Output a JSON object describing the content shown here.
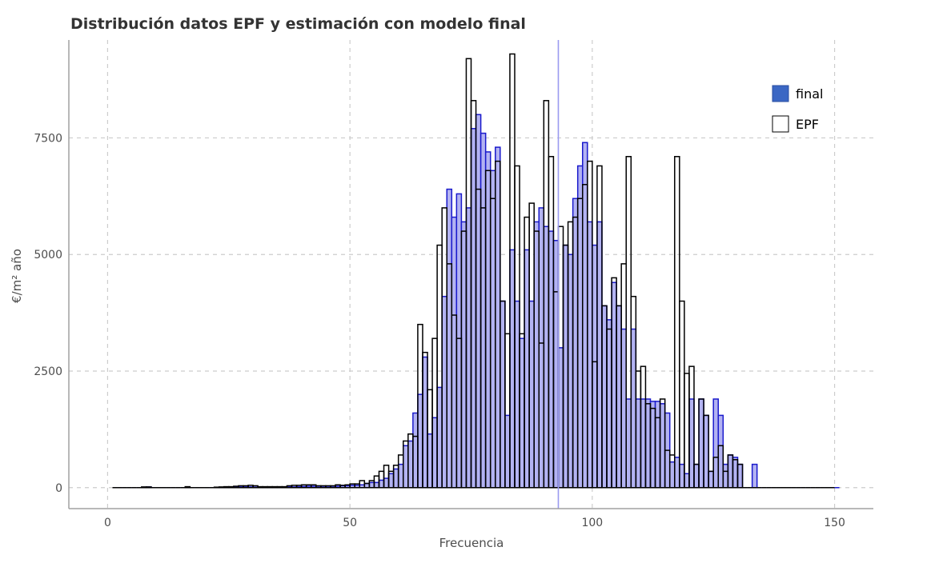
{
  "chart_data": {
    "type": "bar",
    "title": "Distribución datos EPF y estimación con modelo final",
    "xlabel": "Frecuencia",
    "ylabel": "€/m² año",
    "xlim": [
      -8,
      158
    ],
    "ylim": [
      -450,
      9600
    ],
    "xticks": [
      0,
      50,
      100,
      150
    ],
    "yticks": [
      0,
      2500,
      5000,
      7500
    ],
    "grid": true,
    "legend_position": "top-right",
    "bin_width": 1,
    "bin_start": 1,
    "vline": 93,
    "series": [
      {
        "name": "final",
        "fill": "#b3b3f2",
        "stroke": "#1a1acc",
        "values": [
          0,
          0,
          0,
          0,
          0,
          0,
          10,
          15,
          0,
          0,
          0,
          0,
          0,
          0,
          0,
          5,
          0,
          0,
          0,
          0,
          0,
          5,
          5,
          10,
          10,
          10,
          15,
          15,
          15,
          10,
          10,
          10,
          10,
          10,
          5,
          10,
          15,
          15,
          20,
          25,
          30,
          30,
          30,
          30,
          30,
          30,
          30,
          40,
          40,
          50,
          50,
          60,
          90,
          110,
          110,
          160,
          200,
          300,
          400,
          500,
          900,
          1000,
          1600,
          2000,
          2800,
          1150,
          1500,
          2150,
          4100,
          6400,
          5800,
          6300,
          5700,
          6000,
          7700,
          8000,
          7600,
          7200,
          6800,
          7300,
          4000,
          1550,
          5100,
          4000,
          3200,
          5100,
          4000,
          5700,
          6000,
          5600,
          5500,
          5300,
          3000,
          5200,
          5000,
          6200,
          6900,
          7400,
          5700,
          5200,
          5700,
          3900,
          3600,
          4400,
          3900,
          3400,
          1900,
          3400,
          1900,
          1900,
          1900,
          1850,
          1850,
          1800,
          1600,
          550,
          650,
          500,
          300,
          250,
          0,
          0,
          0,
          0,
          0,
          0,
          0,
          0,
          0,
          0,
          0,
          0,
          0,
          0,
          0,
          0,
          0,
          0,
          0,
          0,
          0,
          0,
          0,
          0,
          0,
          0,
          0,
          0,
          0,
          0
        ],
        "tail_values_override": {
          "120": 1900,
          "121": 500,
          "122": 1900,
          "123": 1550,
          "124": 350,
          "125": 1900,
          "126": 1550,
          "127": 500,
          "128": 700,
          "129": 650,
          "130": 500,
          "131": 0,
          "132": 0,
          "133": 500
        }
      },
      {
        "name": "EPF",
        "fill": "#ffffff",
        "stroke": "#000000",
        "values": [
          0,
          0,
          0,
          0,
          0,
          0,
          15,
          15,
          0,
          0,
          0,
          0,
          0,
          0,
          0,
          20,
          0,
          0,
          0,
          0,
          0,
          10,
          15,
          20,
          20,
          30,
          40,
          40,
          50,
          40,
          20,
          20,
          20,
          20,
          20,
          20,
          40,
          50,
          50,
          60,
          60,
          60,
          40,
          40,
          40,
          40,
          60,
          50,
          60,
          80,
          80,
          150,
          90,
          150,
          250,
          350,
          480,
          350,
          480,
          700,
          1000,
          1150,
          1100,
          3500,
          2900,
          2100,
          3200,
          5200,
          6000,
          4800,
          3700,
          3200,
          5500,
          9200,
          8300,
          6400,
          6000,
          6800,
          6200,
          7000,
          4000,
          3300,
          9300,
          6900,
          3300,
          5800,
          6100,
          5500,
          3100,
          8300,
          7100,
          4200,
          5600,
          5200,
          5700,
          5800,
          6200,
          6500,
          7000,
          2700,
          6900,
          3900,
          3400,
          4500,
          3900,
          4800,
          7100,
          4100,
          2500,
          2600,
          1800,
          1700,
          1500,
          1900,
          800,
          700,
          500,
          550,
          500,
          0,
          0,
          0,
          0,
          0,
          0,
          0,
          0,
          0,
          0,
          0,
          0,
          0,
          0,
          0,
          0,
          0,
          0,
          0,
          0,
          0,
          0,
          0,
          0,
          0,
          0,
          0,
          0,
          0,
          0
        ],
        "tail_values_override": {
          "117": 7100,
          "118": 4000,
          "119": 2450,
          "120": 2600,
          "121": 500,
          "122": 1900,
          "123": 1550,
          "124": 350,
          "125": 650,
          "126": 900,
          "127": 350,
          "128": 700,
          "129": 600,
          "130": 500
        }
      }
    ]
  }
}
